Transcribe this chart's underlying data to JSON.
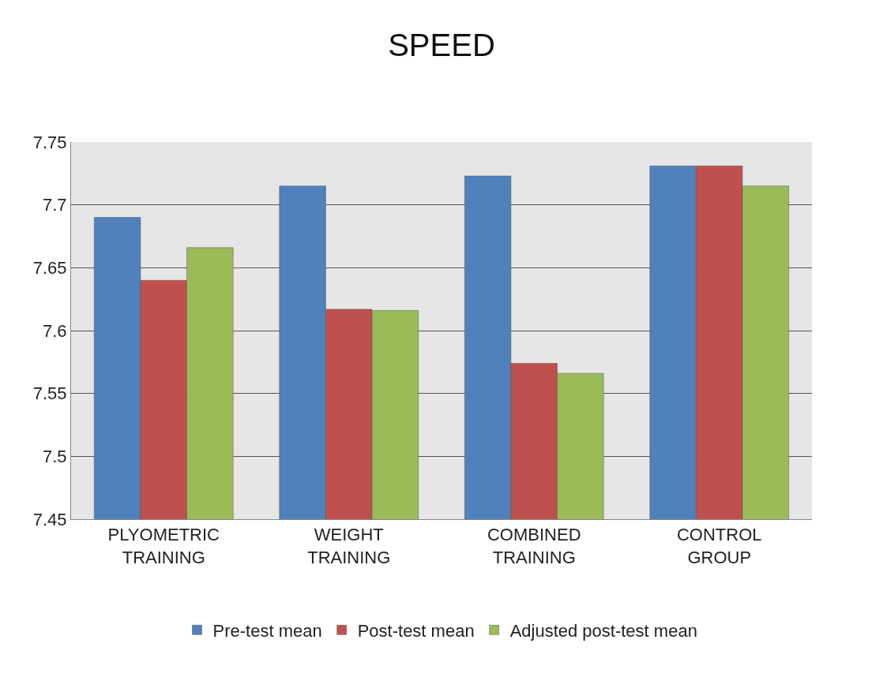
{
  "chart_data": {
    "type": "bar",
    "title": "SPEED",
    "categories": [
      "PLYOMETRIC\nTRAINING",
      "WEIGHT\nTRAINING",
      "COMBINED\nTRAINING",
      "CONTROL\nGROUP"
    ],
    "series": [
      {
        "name": "Pre-test mean",
        "color": "#4f81bd",
        "values": [
          7.69,
          7.715,
          7.723,
          7.731
        ]
      },
      {
        "name": "Post-test mean",
        "color": "#c0504d",
        "values": [
          7.64,
          7.617,
          7.574,
          7.731
        ]
      },
      {
        "name": "Adjusted post-test mean",
        "color": "#9bbb59",
        "values": [
          7.666,
          7.616,
          7.566,
          7.715
        ]
      }
    ],
    "ylim": [
      7.45,
      7.75
    ],
    "yticks": [
      7.45,
      7.5,
      7.55,
      7.6,
      7.65,
      7.7,
      7.75
    ],
    "grid": "y",
    "legend": "bottom"
  }
}
